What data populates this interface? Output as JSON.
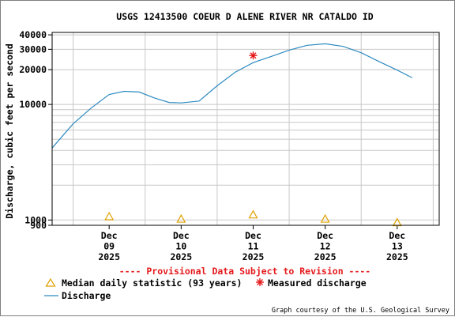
{
  "chart_data": {
    "type": "line",
    "title": "USGS 12413500 COEUR D ALENE RIVER NR CATALDO ID",
    "ylabel": "Discharge, cubic feet per second",
    "xlabel": "",
    "y_scale": "log",
    "ylim": [
      900,
      42000
    ],
    "y_ticks": [
      {
        "value": 900,
        "label": "900"
      },
      {
        "value": 1000,
        "label": "1000"
      },
      {
        "value": 10000,
        "label": "10000"
      },
      {
        "value": 20000,
        "label": "20000"
      },
      {
        "value": 30000,
        "label": "30000"
      },
      {
        "value": 40000,
        "label": "40000"
      }
    ],
    "y_minor_grid": [
      2000,
      3000,
      4000,
      5000,
      6000,
      7000,
      8000,
      9000
    ],
    "xlim": [
      "2025-12-08T17:00",
      "2025-12-14T02:00"
    ],
    "x_ticks": [
      {
        "x": "2025-12-09T12:00",
        "lines": [
          "Dec",
          "09",
          "2025"
        ]
      },
      {
        "x": "2025-12-10T12:00",
        "lines": [
          "Dec",
          "10",
          "2025"
        ]
      },
      {
        "x": "2025-12-11T12:00",
        "lines": [
          "Dec",
          "11",
          "2025"
        ]
      },
      {
        "x": "2025-12-12T12:00",
        "lines": [
          "Dec",
          "12",
          "2025"
        ]
      },
      {
        "x": "2025-12-13T12:00",
        "lines": [
          "Dec",
          "13",
          "2025"
        ]
      }
    ],
    "x_grid": [
      "2025-12-09T00:00",
      "2025-12-10T00:00",
      "2025-12-11T00:00",
      "2025-12-12T00:00",
      "2025-12-13T00:00",
      "2025-12-14T00:00"
    ],
    "grid": true,
    "series": [
      {
        "name": "Discharge",
        "color": "#2e8bc0",
        "x": [
          "2025-12-08T17:00",
          "2025-12-09T00:00",
          "2025-12-09T06:00",
          "2025-12-09T12:00",
          "2025-12-09T17:00",
          "2025-12-09T22:00",
          "2025-12-10T03:00",
          "2025-12-10T08:00",
          "2025-12-10T12:00",
          "2025-12-10T18:00",
          "2025-12-11T00:00",
          "2025-12-11T06:00",
          "2025-12-11T12:00",
          "2025-12-11T18:00",
          "2025-12-12T00:00",
          "2025-12-12T06:00",
          "2025-12-12T12:00",
          "2025-12-12T18:00",
          "2025-12-13T00:00",
          "2025-12-13T06:00",
          "2025-12-13T12:00",
          "2025-12-13T17:00"
        ],
        "y": [
          4200,
          6800,
          9300,
          12200,
          13000,
          12800,
          11400,
          10400,
          10300,
          10700,
          14500,
          19000,
          23000,
          26000,
          29500,
          32500,
          33500,
          31800,
          28000,
          23500,
          19800,
          17000
        ]
      },
      {
        "name": "Median daily statistic (93 years)",
        "color": "#e0a000",
        "marker": "triangle",
        "x": [
          "2025-12-09T12:00",
          "2025-12-10T12:00",
          "2025-12-11T12:00",
          "2025-12-12T12:00",
          "2025-12-13T12:00"
        ],
        "y": [
          1070,
          1020,
          1110,
          1020,
          950
        ]
      },
      {
        "name": "Measured discharge",
        "color": "#e41a1c",
        "marker": "asterisk",
        "x": [
          "2025-12-11T12:00"
        ],
        "y": [
          26500
        ]
      }
    ],
    "legend_position": "bottom",
    "annotations": {
      "provisional": "---- Provisional Data Subject to Revision ----",
      "credit": "Graph courtesy of the U.S. Geological Survey"
    }
  }
}
